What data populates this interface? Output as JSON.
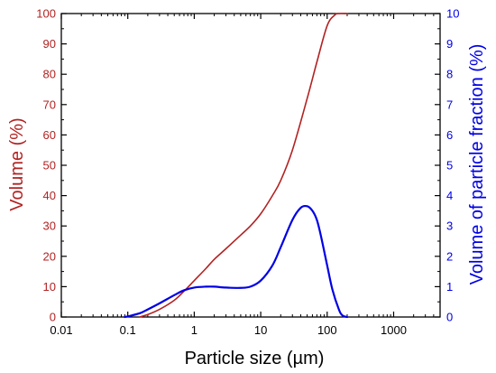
{
  "chart_data": {
    "type": "line",
    "xlabel": "Particle size (µm)",
    "ylabel_left": "Volume (%)",
    "ylabel_right": "Volume of particle fraction (%)",
    "x_scale": "log",
    "xlim": [
      0.01,
      5000
    ],
    "ylim_left": [
      0,
      100
    ],
    "ylim_right": [
      0,
      10
    ],
    "x_ticks": [
      0.01,
      0.1,
      1,
      10,
      100,
      1000
    ],
    "x_tick_labels": [
      "0.01",
      "0.1",
      "1",
      "10",
      "100",
      "1000"
    ],
    "y_left_ticks": [
      0,
      10,
      20,
      30,
      40,
      50,
      60,
      70,
      80,
      90,
      100
    ],
    "y_left_tick_labels": [
      "0",
      "10",
      "20",
      "30",
      "40",
      "50",
      "60",
      "70",
      "80",
      "90",
      "100"
    ],
    "y_right_ticks": [
      0,
      1,
      2,
      3,
      4,
      5,
      6,
      7,
      8,
      9,
      10
    ],
    "y_right_tick_labels": [
      "0",
      "1",
      "2",
      "3",
      "4",
      "5",
      "6",
      "7",
      "8",
      "9",
      "10"
    ],
    "colors": {
      "cumulative": "#b22222",
      "fraction": "#0000e6",
      "axis": "#000000"
    },
    "series": [
      {
        "axis": "left",
        "x": [
          0.15,
          0.2,
          0.3,
          0.5,
          0.7,
          1,
          1.5,
          2,
          3,
          5,
          7,
          10,
          15,
          20,
          30,
          50,
          70,
          100,
          130,
          150,
          200
        ],
        "y": [
          0,
          0.8,
          2.5,
          5.5,
          8.5,
          12,
          16,
          19,
          22.5,
          27,
          30,
          34,
          40,
          45,
          55,
          72,
          84,
          96,
          99.5,
          100,
          100
        ]
      },
      {
        "axis": "right",
        "x": [
          0.09,
          0.1,
          0.15,
          0.2,
          0.3,
          0.5,
          0.7,
          1,
          1.5,
          2,
          3,
          5,
          7,
          10,
          15,
          20,
          30,
          40,
          50,
          60,
          70,
          80,
          100,
          120,
          150,
          170,
          200
        ],
        "y": [
          0,
          0.02,
          0.12,
          0.25,
          0.45,
          0.72,
          0.88,
          0.97,
          1.0,
          1.0,
          0.97,
          0.96,
          1.0,
          1.2,
          1.7,
          2.3,
          3.2,
          3.6,
          3.65,
          3.5,
          3.2,
          2.7,
          1.7,
          0.9,
          0.25,
          0.05,
          0
        ]
      }
    ]
  }
}
